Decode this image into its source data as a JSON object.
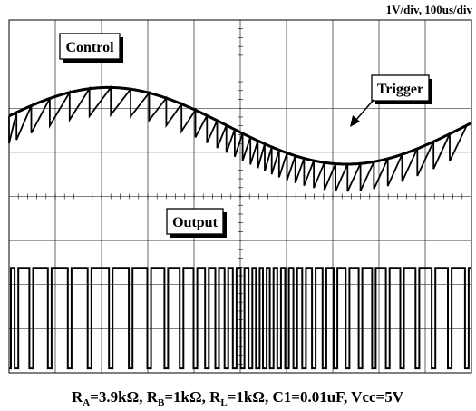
{
  "scale_label": "1V/div, 100us/div",
  "caption": {
    "parts": [
      {
        "text": "R",
        "sub": false
      },
      {
        "text": "A",
        "sub": true
      },
      {
        "text": "=3.9kΩ, R",
        "sub": false
      },
      {
        "text": "B",
        "sub": true
      },
      {
        "text": "=1kΩ, R",
        "sub": false
      },
      {
        "text": "L",
        "sub": true
      },
      {
        "text": "=1kΩ, C1=0.01uF, Vcc=5V",
        "sub": false
      }
    ]
  },
  "chart_data": {
    "type": "line",
    "title": "1V/div, 100us/div",
    "grid": {
      "divisions_x": 10,
      "divisions_y": 8,
      "minor_ticks_per_div": 5,
      "grid_on": true
    },
    "x_range": [
      0,
      1000
    ],
    "x_unit": "us",
    "annotations": [
      {
        "text": "Control",
        "target_series": "Control"
      },
      {
        "text": "Trigger",
        "target_series": "Trigger"
      },
      {
        "text": "Output",
        "target_series": "Output"
      }
    ],
    "series": [
      {
        "name": "Control",
        "kind": "sine",
        "center_div": 2.4,
        "amplitude_div": 0.87,
        "period_us": 1030,
        "peak_time_us": 215,
        "color": "#000000"
      },
      {
        "name": "Trigger",
        "kind": "sawtooth",
        "low_level_div": 0.62,
        "cycle_times_us": [
          0,
          16,
          48,
          88,
          131,
          174,
          220,
          263,
          303,
          340,
          373,
          403,
          428,
          450,
          470,
          488,
          505,
          522,
          538,
          553,
          568,
          584,
          601,
          619,
          638,
          659,
          682,
          706,
          732,
          760,
          789,
          819,
          850,
          883,
          918,
          953,
          990
        ],
        "color": "#000000"
      },
      {
        "name": "Output",
        "kind": "pulse",
        "high_div": 5.62,
        "low_div": 7.9,
        "low_pulse_width_us": 8,
        "color": "#000000"
      }
    ]
  }
}
